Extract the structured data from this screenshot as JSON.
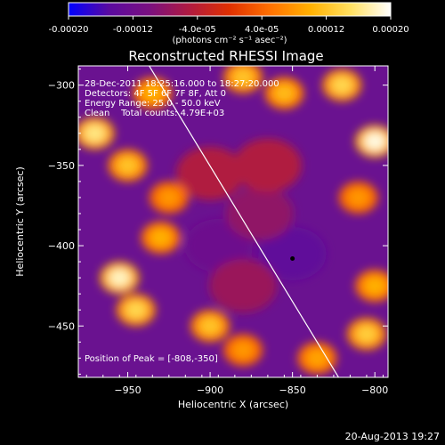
{
  "colorbar": {
    "tick_labels": [
      "-0.00020",
      "-0.00012",
      "-4.0e-05",
      "4.0e-05",
      "0.00012",
      "0.00020"
    ],
    "tick_values": [
      -0.0002,
      -0.00012,
      -4e-05,
      4e-05,
      0.00012,
      0.0002
    ],
    "range": [
      -0.0002,
      0.0002
    ],
    "units": "(photons cm⁻² s⁻¹ asec⁻²)",
    "stops": [
      "#0000ff",
      "#5a0aa0",
      "#7a1080",
      "#b01a40",
      "#e03000",
      "#ff7000",
      "#ffb000",
      "#ffe060",
      "#ffffff"
    ]
  },
  "chart_data": {
    "type": "heatmap",
    "title": "Reconstructed RHESSI Image",
    "xlabel": "Heliocentric X (arcsec)",
    "ylabel": "Heliocentric Y (arcsec)",
    "xlim": [
      -980,
      -792
    ],
    "ylim": [
      -482,
      -288
    ],
    "xticks": [
      -950,
      -900,
      -850,
      -800
    ],
    "yticks": [
      -300,
      -350,
      -400,
      -450
    ],
    "xtick_labels": [
      "−950",
      "−900",
      "−850",
      "−800"
    ],
    "ytick_labels": [
      "−300",
      "−350",
      "−400",
      "−450"
    ],
    "info_lines": [
      "28-Dec-2011 18:25:16.000 to 18:27:20.000",
      "Detectors: 4F 5F 6F 7F 8F, Att 0",
      "Energy Range: 25.0 - 50.0 keV",
      "Clean    Total counts: 4.79E+03"
    ],
    "peak_label": "Position of Peak = [-808,-350]",
    "peak_marker": [
      -850,
      -408
    ],
    "limb_line": [
      [
        -937,
        -288
      ],
      [
        -822,
        -482
      ]
    ],
    "bright_blobs": [
      {
        "x": -970,
        "y": -330,
        "v": 0.00016
      },
      {
        "x": -955,
        "y": -420,
        "v": 0.00018
      },
      {
        "x": -950,
        "y": -350,
        "v": 0.00012
      },
      {
        "x": -945,
        "y": -440,
        "v": 0.00014
      },
      {
        "x": -935,
        "y": -305,
        "v": 0.0001
      },
      {
        "x": -880,
        "y": -295,
        "v": 0.00012
      },
      {
        "x": -855,
        "y": -305,
        "v": 0.00011
      },
      {
        "x": -820,
        "y": -300,
        "v": 0.00014
      },
      {
        "x": -800,
        "y": -335,
        "v": 0.00019
      },
      {
        "x": -810,
        "y": -370,
        "v": 8e-05
      },
      {
        "x": -805,
        "y": -455,
        "v": 0.00013
      },
      {
        "x": -800,
        "y": -425,
        "v": 0.0001
      },
      {
        "x": -835,
        "y": -470,
        "v": 9e-05
      },
      {
        "x": -900,
        "y": -450,
        "v": 0.00012
      },
      {
        "x": -880,
        "y": -465,
        "v": 8e-05
      },
      {
        "x": -930,
        "y": -395,
        "v": 0.0001
      },
      {
        "x": -925,
        "y": -370,
        "v": 8e-05
      }
    ],
    "dark_blobs": [
      {
        "x": -895,
        "y": -400,
        "v": -0.00012
      },
      {
        "x": -850,
        "y": -405,
        "v": -0.00014
      },
      {
        "x": -870,
        "y": -380,
        "v": -8e-05
      },
      {
        "x": -900,
        "y": -355,
        "v": -5e-05
      },
      {
        "x": -865,
        "y": -350,
        "v": -5e-05
      },
      {
        "x": -880,
        "y": -425,
        "v": -7e-05
      }
    ]
  },
  "footer": {
    "timestamp": "20-Aug-2013 19:27"
  }
}
